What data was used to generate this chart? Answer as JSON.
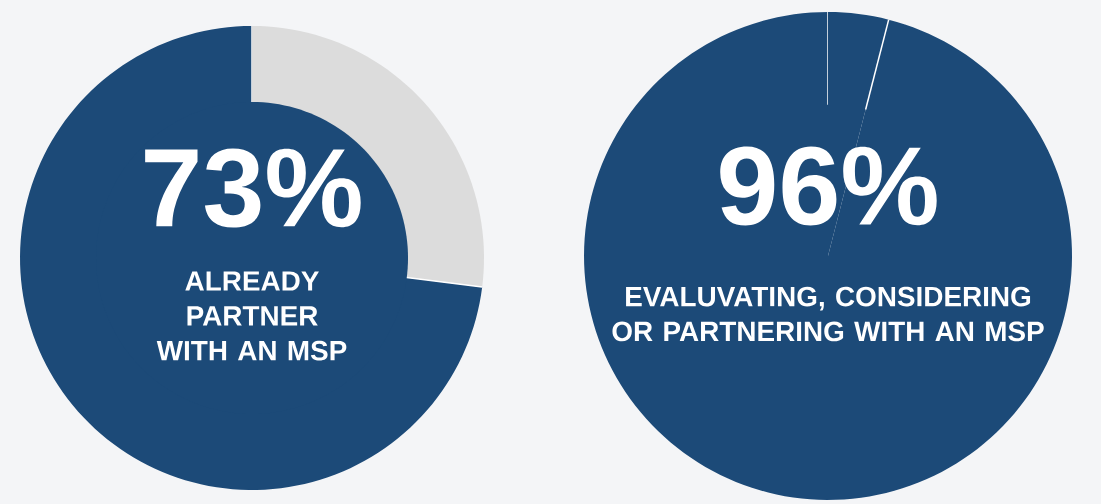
{
  "chart_data": [
    {
      "type": "donut",
      "categories": [
        "ALREADY PARTNER WITH AN MSP",
        null
      ],
      "values": [
        73,
        27
      ],
      "colors": [
        "#1c4a78",
        "#dcdcdc"
      ],
      "value_labels": [
        "73%",
        null
      ]
    },
    {
      "type": "pie",
      "categories": [
        "EVALUVATING, CONSIDERING OR PARTNERING WITH AN MSP",
        null
      ],
      "values": [
        96,
        4
      ],
      "colors": [
        "#1c4a78",
        "#1c4a78"
      ],
      "value_labels": [
        "96%",
        null
      ]
    }
  ]
}
